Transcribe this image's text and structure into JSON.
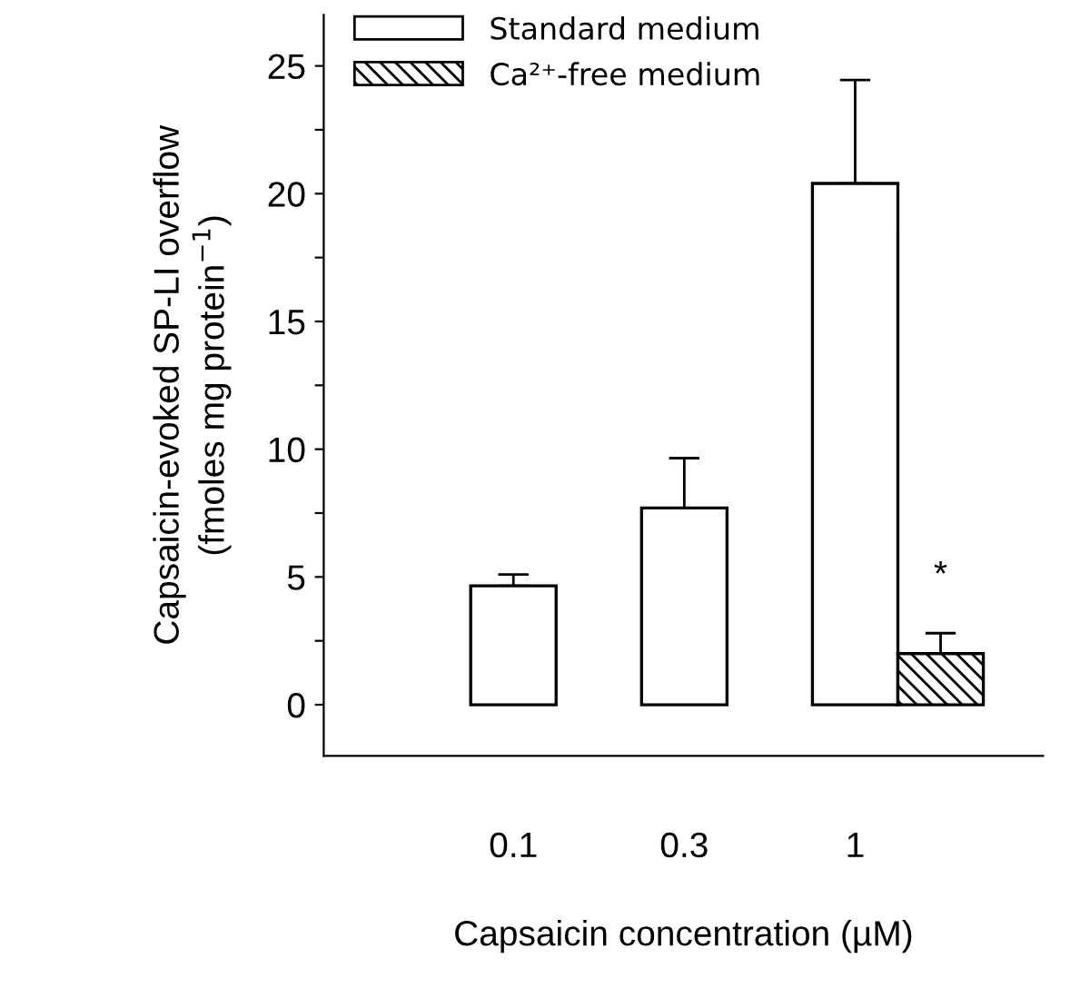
{
  "chart_data": {
    "type": "bar",
    "xlabel": "Capsaicin concentration (µM)",
    "ylabel": "Capsaicin-evoked SP-LI overflow\n(fmoles mg protein$^{−1}$)",
    "categories": [
      "0.1",
      "0.3",
      "1"
    ],
    "series": [
      {
        "name": "Standard medium",
        "color": "#ffffff",
        "values": [
          4.65,
          7.7,
          20.4
        ],
        "errors": [
          [
            4.65,
            5.1
          ],
          [
            7.7,
            9.65
          ],
          [
            20.4,
            24.45
          ]
        ]
      },
      {
        "name": "Ca²⁺-free medium",
        "color": "#000000",
        "values": [
          null,
          null,
          2.0
        ],
        "errors": [
          null,
          null,
          [
            2.0,
            2.8
          ]
        ]
      }
    ],
    "ylim": [
      -2,
      27
    ],
    "yticks": [
      0,
      {
        "value": 2.5,
        "label": null
      },
      5,
      {
        "value": 7.5,
        "label": null
      },
      10,
      {
        "value": 12.5,
        "label": null
      },
      15,
      {
        "value": 17.5,
        "label": null
      },
      20,
      {
        "value": 22.5,
        "label": null
      },
      25
    ],
    "annotations": [
      "*"
    ],
    "legend": "top left",
    "grid": false
  }
}
